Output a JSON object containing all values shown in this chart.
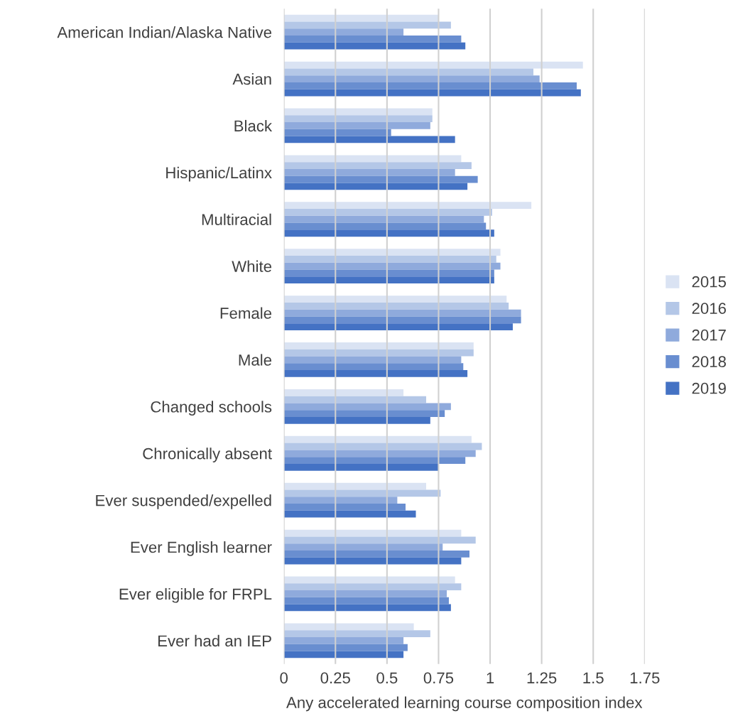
{
  "chart_data": {
    "type": "bar",
    "orientation": "horizontal",
    "xlabel": "Any accelerated learning course composition index",
    "categories": [
      "American Indian/Alaska Native",
      "Asian",
      "Black",
      "Hispanic/Latinx",
      "Multiracial",
      "White",
      "Female",
      "Male",
      "Changed schools",
      "Chronically absent",
      "Ever suspended/expelled",
      "Ever English learner",
      "Ever eligible for FRPL",
      "Ever had an IEP"
    ],
    "series": [
      {
        "name": "2015",
        "color": "#dae3f3",
        "values": [
          0.75,
          1.45,
          0.72,
          0.86,
          1.2,
          1.05,
          1.08,
          0.92,
          0.58,
          0.91,
          0.69,
          0.86,
          0.83,
          0.63
        ]
      },
      {
        "name": "2016",
        "color": "#b4c7e7",
        "values": [
          0.81,
          1.21,
          0.72,
          0.91,
          1.01,
          1.03,
          1.09,
          0.92,
          0.69,
          0.96,
          0.76,
          0.93,
          0.86,
          0.71
        ]
      },
      {
        "name": "2017",
        "color": "#8faadc",
        "values": [
          0.58,
          1.24,
          0.71,
          0.83,
          0.97,
          1.05,
          1.15,
          0.86,
          0.81,
          0.93,
          0.55,
          0.77,
          0.79,
          0.58
        ]
      },
      {
        "name": "2018",
        "color": "#698ed0",
        "values": [
          0.86,
          1.42,
          0.52,
          0.94,
          0.98,
          1.02,
          1.15,
          0.87,
          0.78,
          0.88,
          0.59,
          0.9,
          0.8,
          0.6
        ]
      },
      {
        "name": "2019",
        "color": "#4472c4",
        "values": [
          0.88,
          1.44,
          0.83,
          0.89,
          1.02,
          1.02,
          1.11,
          0.89,
          0.71,
          0.75,
          0.64,
          0.86,
          0.81,
          0.58
        ]
      }
    ],
    "xlim": [
      0,
      1.75
    ],
    "xticks": [
      0,
      0.25,
      0.5,
      0.75,
      1,
      1.25,
      1.5,
      1.75
    ],
    "grid": "x",
    "legend": "right"
  }
}
